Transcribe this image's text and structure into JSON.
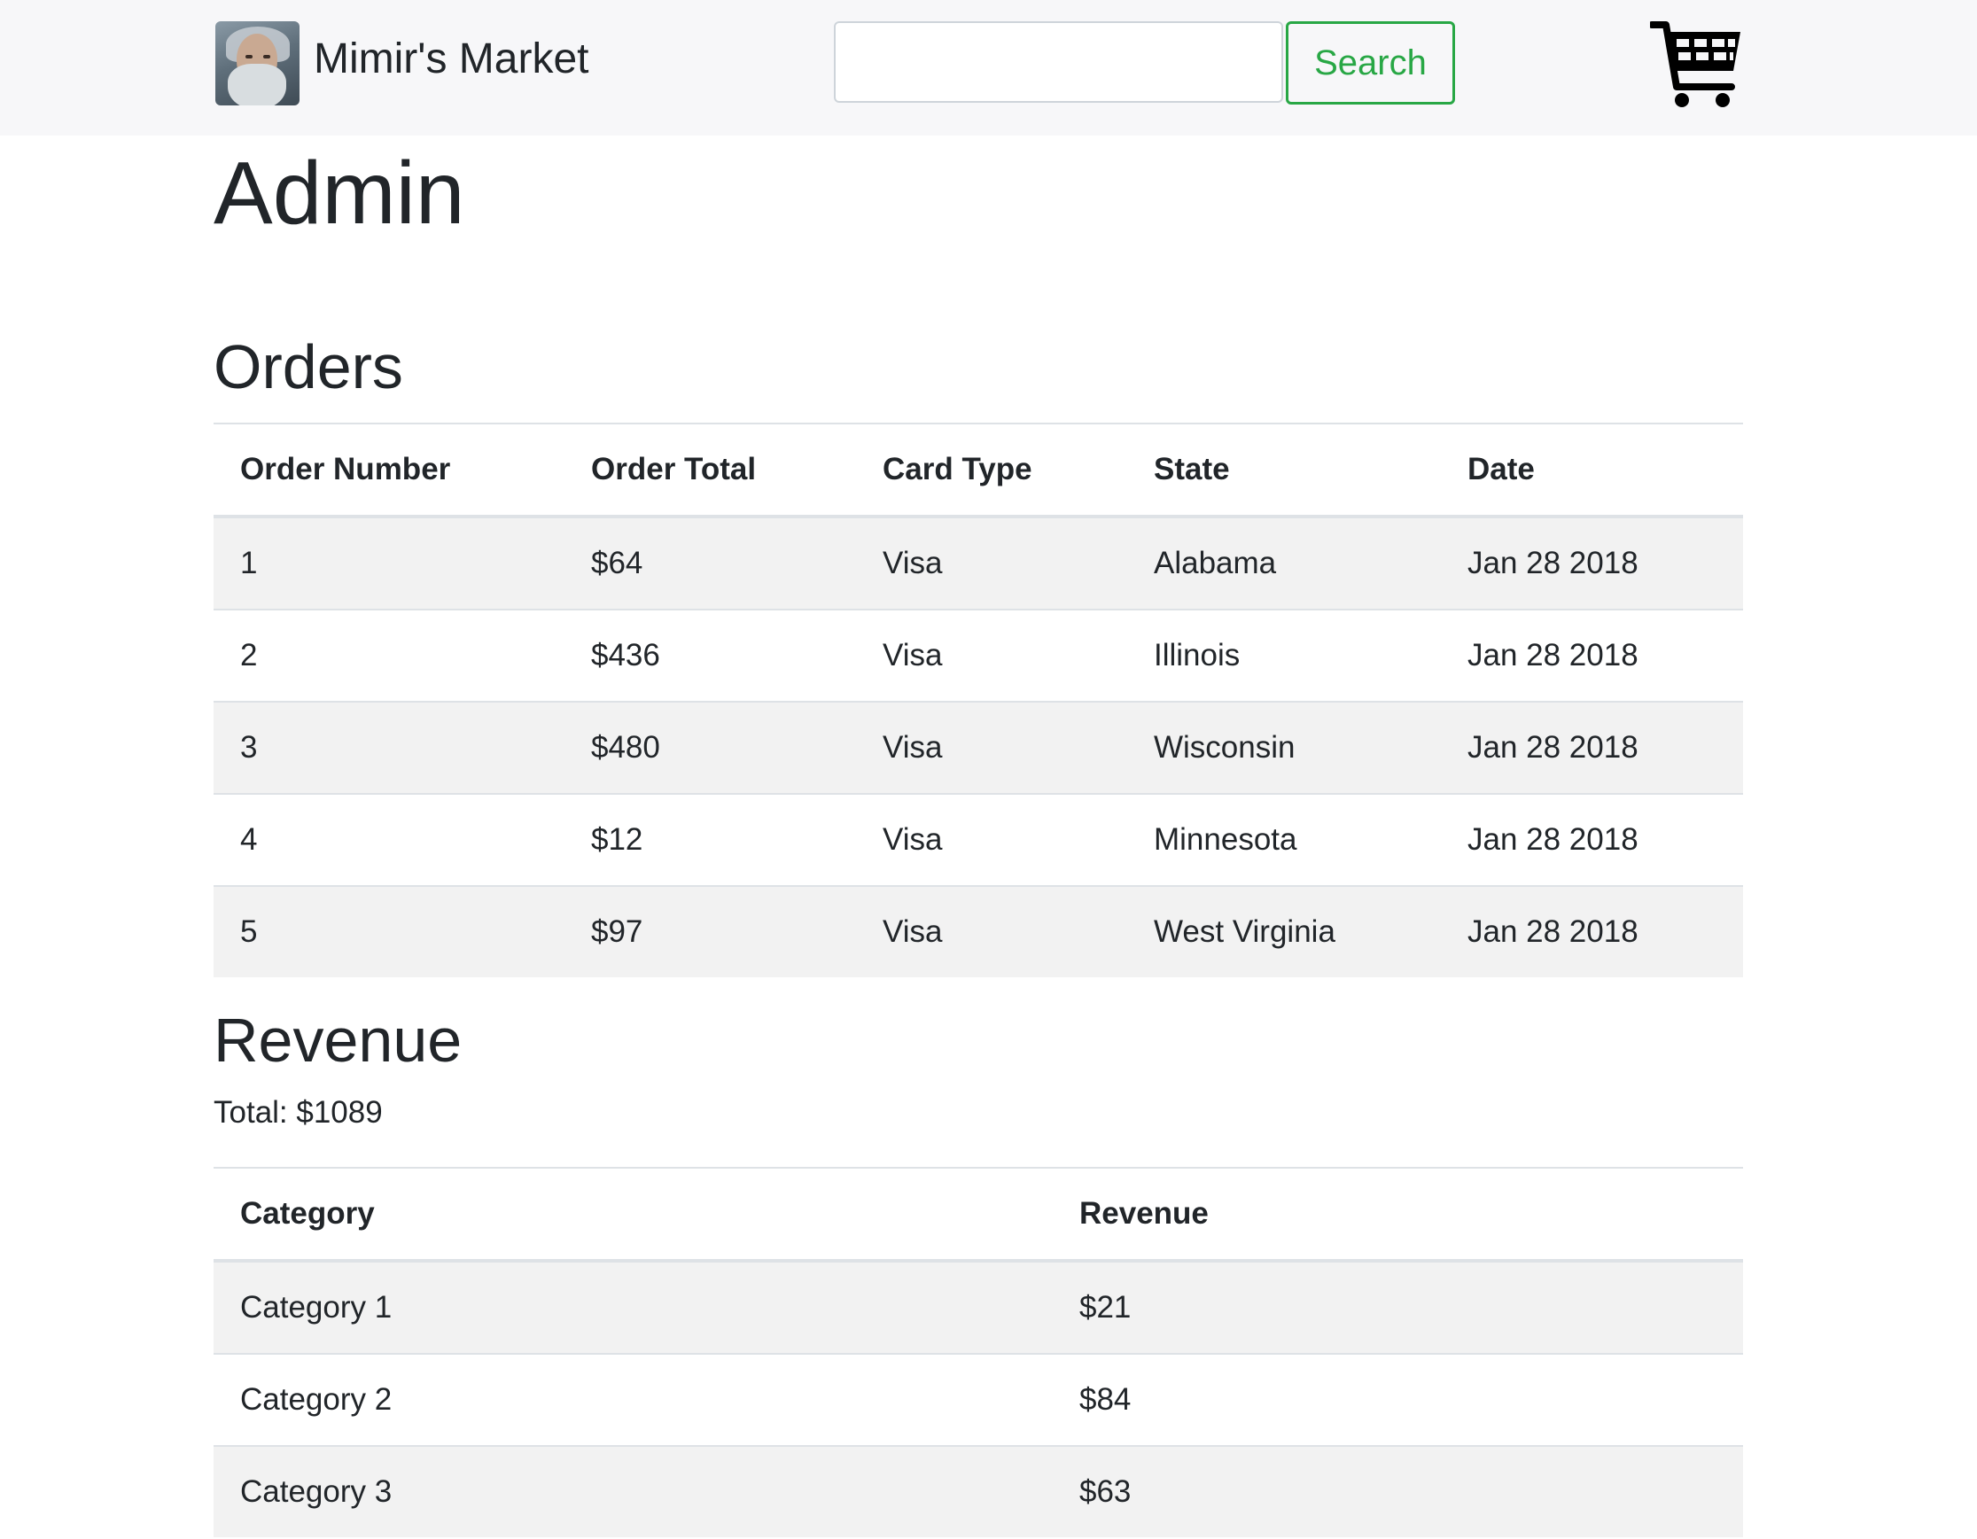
{
  "navbar": {
    "brand": "Mimir's Market",
    "search_placeholder": "",
    "search_button": "Search"
  },
  "page": {
    "title": "Admin"
  },
  "orders": {
    "heading": "Orders",
    "columns": [
      "Order Number",
      "Order Total",
      "Card Type",
      "State",
      "Date"
    ],
    "rows": [
      [
        "1",
        "$64",
        "Visa",
        "Alabama",
        "Jan 28 2018"
      ],
      [
        "2",
        "$436",
        "Visa",
        "Illinois",
        "Jan 28 2018"
      ],
      [
        "3",
        "$480",
        "Visa",
        "Wisconsin",
        "Jan 28 2018"
      ],
      [
        "4",
        "$12",
        "Visa",
        "Minnesota",
        "Jan 28 2018"
      ],
      [
        "5",
        "$97",
        "Visa",
        "West Virginia",
        "Jan 28 2018"
      ]
    ]
  },
  "revenue": {
    "heading": "Revenue",
    "total": "Total: $1089",
    "columns": [
      "Category",
      "Revenue"
    ],
    "rows": [
      [
        "Category 1",
        "$21"
      ],
      [
        "Category 2",
        "$84"
      ],
      [
        "Category 3",
        "$63"
      ]
    ]
  },
  "icons": {
    "logo": "bearded-man-avatar-icon",
    "cart": "shopping-cart-icon"
  },
  "colors": {
    "accent_green": "#28a745",
    "navbar_bg": "#f7f7f9",
    "stripe_bg": "#f2f2f2"
  }
}
